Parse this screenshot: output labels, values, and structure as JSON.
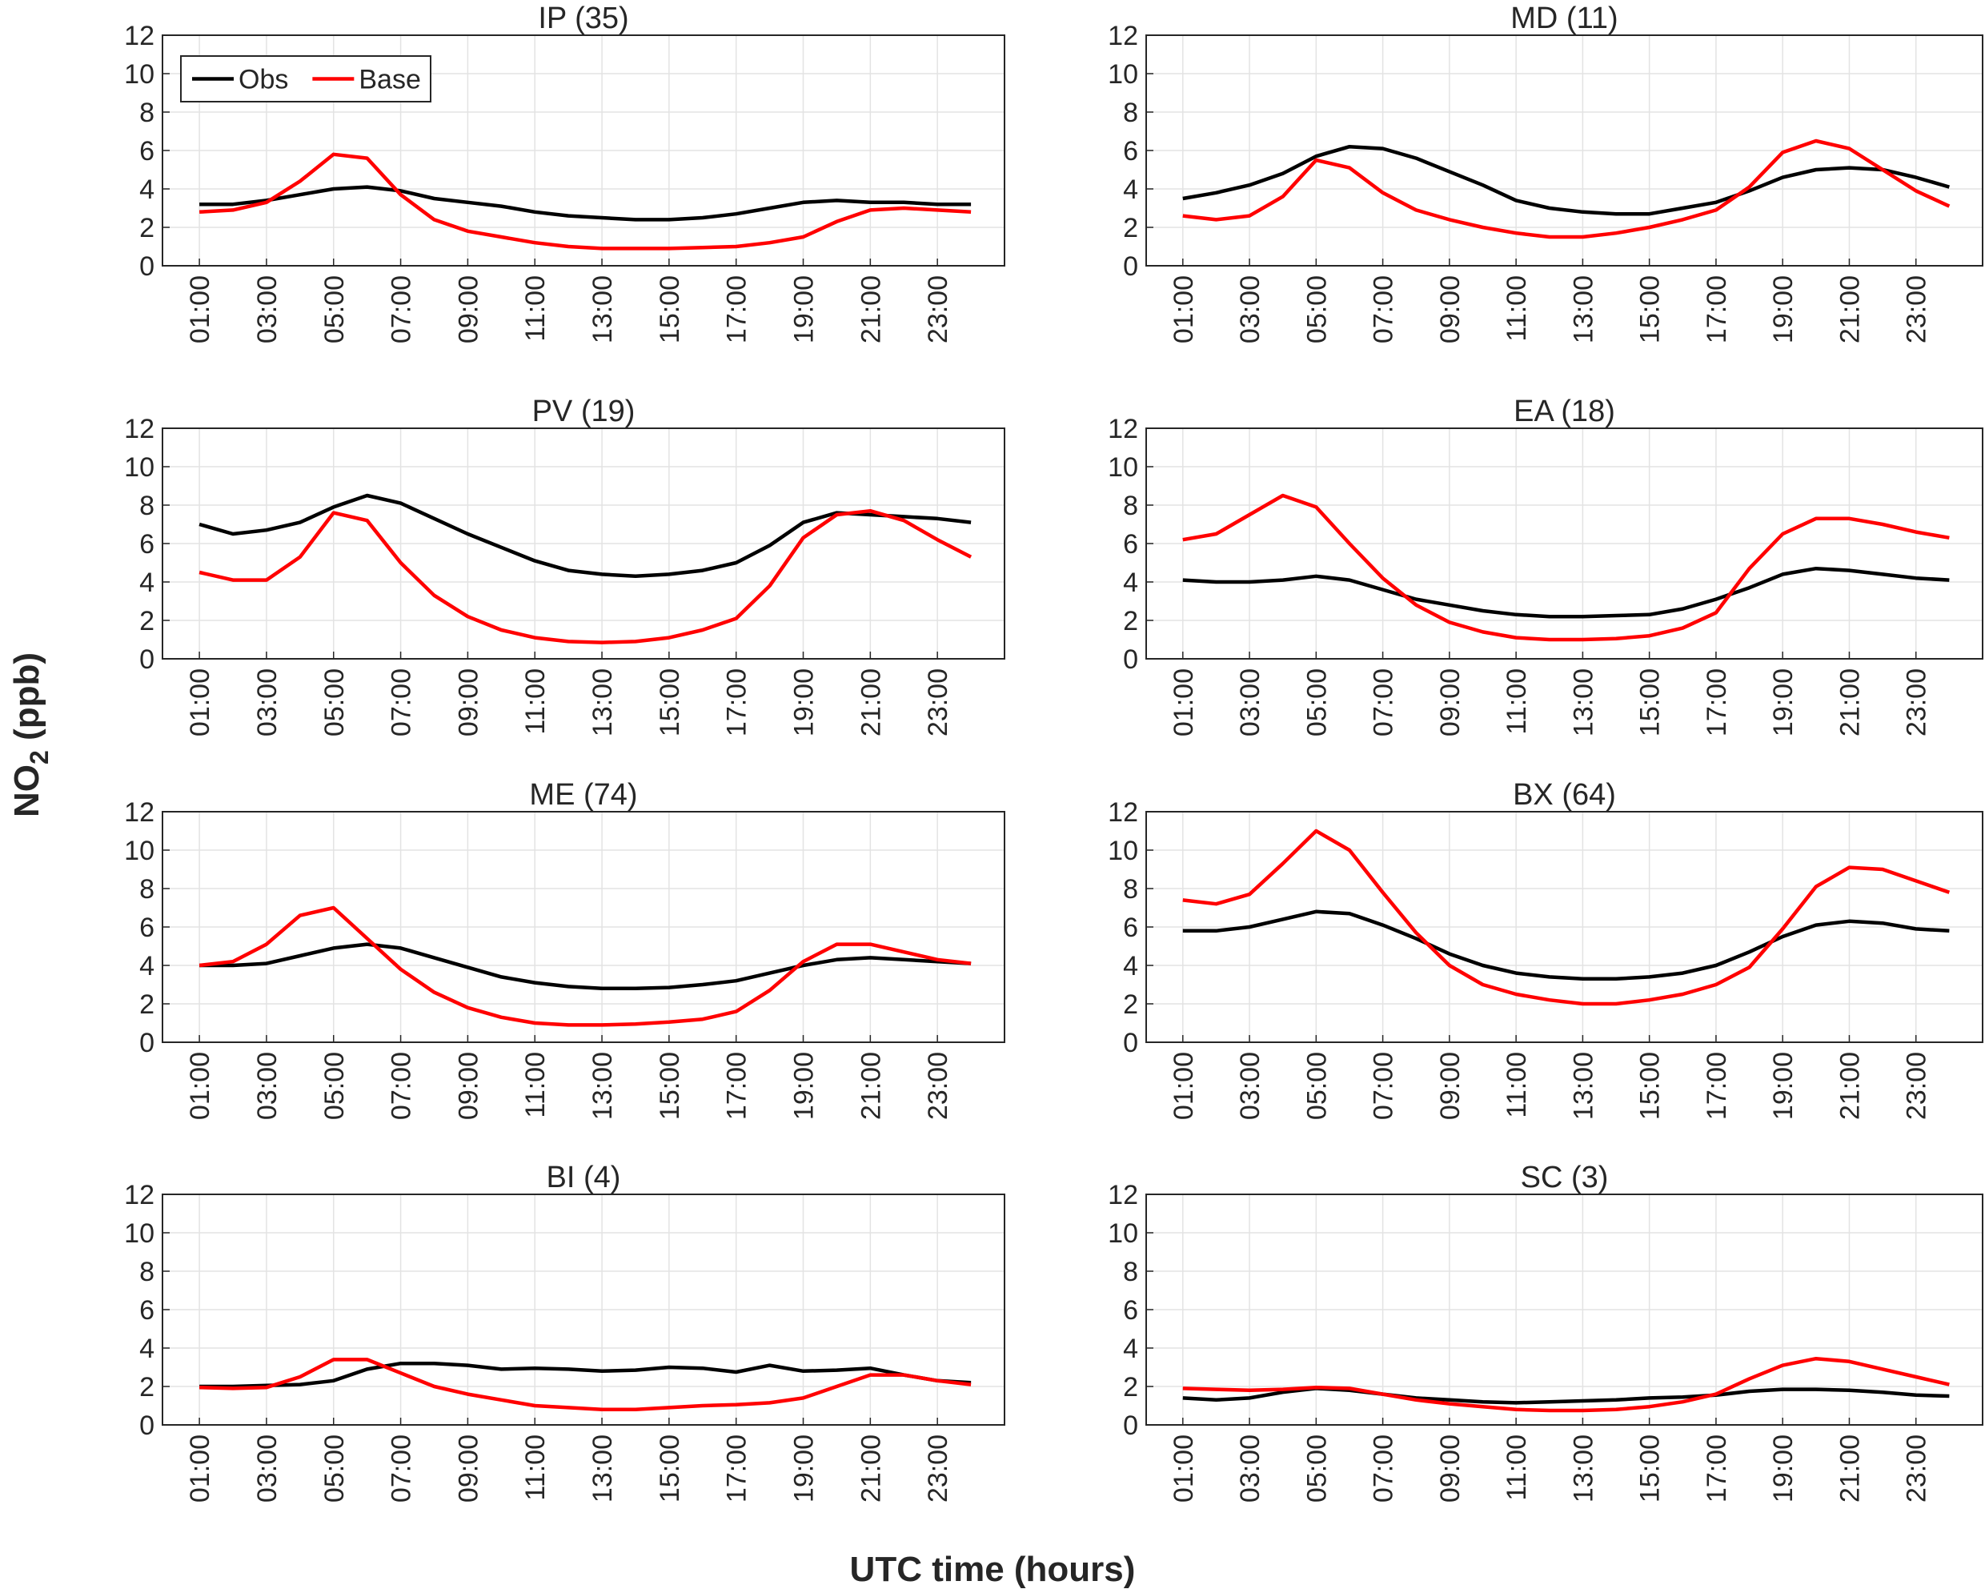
{
  "figure": {
    "ylabel": [
      "NO",
      "2",
      " (ppb)"
    ],
    "xlabel": "UTC time (hours)"
  },
  "chart_data": [
    {
      "type": "line",
      "title": "IP (35)",
      "legend": "upper left",
      "categories": [
        "01:00",
        null,
        "03:00",
        null,
        "05:00",
        null,
        "07:00",
        null,
        "09:00",
        null,
        "11:00",
        null,
        "13:00",
        null,
        "15:00",
        null,
        "17:00",
        null,
        "19:00",
        null,
        "21:00",
        null,
        "23:00",
        null
      ],
      "series": [
        {
          "name": "Obs",
          "color": "#000000",
          "values": [
            3.2,
            3.2,
            3.4,
            3.7,
            4.0,
            4.1,
            3.9,
            3.5,
            3.3,
            3.1,
            2.8,
            2.6,
            2.5,
            2.4,
            2.4,
            2.5,
            2.7,
            3.0,
            3.3,
            3.4,
            3.3,
            3.3,
            3.2,
            3.2
          ]
        },
        {
          "name": "Base",
          "color": "#ff0000",
          "values": [
            2.8,
            2.9,
            3.3,
            4.4,
            5.8,
            5.6,
            3.7,
            2.4,
            1.8,
            1.5,
            1.2,
            1.0,
            0.9,
            0.9,
            0.9,
            0.95,
            1.0,
            1.2,
            1.5,
            2.3,
            2.9,
            3.0,
            2.9,
            2.8
          ]
        }
      ],
      "ylim": [
        0,
        12
      ],
      "yticks": [
        0,
        2,
        4,
        6,
        8,
        10,
        12
      ],
      "grid": true
    },
    {
      "type": "line",
      "title": "MD (11)",
      "categories": [
        "01:00",
        null,
        "03:00",
        null,
        "05:00",
        null,
        "07:00",
        null,
        "09:00",
        null,
        "11:00",
        null,
        "13:00",
        null,
        "15:00",
        null,
        "17:00",
        null,
        "19:00",
        null,
        "21:00",
        null,
        "23:00",
        null
      ],
      "series": [
        {
          "name": "Obs",
          "color": "#000000",
          "values": [
            3.5,
            3.8,
            4.2,
            4.8,
            5.7,
            6.2,
            6.1,
            5.6,
            4.9,
            4.2,
            3.4,
            3.0,
            2.8,
            2.7,
            2.7,
            3.0,
            3.3,
            3.9,
            4.6,
            5.0,
            5.1,
            5.0,
            4.6,
            4.1
          ]
        },
        {
          "name": "Base",
          "color": "#ff0000",
          "values": [
            2.6,
            2.4,
            2.6,
            3.6,
            5.5,
            5.1,
            3.8,
            2.9,
            2.4,
            2.0,
            1.7,
            1.5,
            1.5,
            1.7,
            2.0,
            2.4,
            2.9,
            4.1,
            5.9,
            6.5,
            6.1,
            5.0,
            3.9,
            3.1
          ]
        }
      ],
      "ylim": [
        0,
        12
      ],
      "yticks": [
        0,
        2,
        4,
        6,
        8,
        10,
        12
      ],
      "grid": true
    },
    {
      "type": "line",
      "title": "PV (19)",
      "categories": [
        "01:00",
        null,
        "03:00",
        null,
        "05:00",
        null,
        "07:00",
        null,
        "09:00",
        null,
        "11:00",
        null,
        "13:00",
        null,
        "15:00",
        null,
        "17:00",
        null,
        "19:00",
        null,
        "21:00",
        null,
        "23:00",
        null
      ],
      "series": [
        {
          "name": "Obs",
          "color": "#000000",
          "values": [
            7.0,
            6.5,
            6.7,
            7.1,
            7.9,
            8.5,
            8.1,
            7.3,
            6.5,
            5.8,
            5.1,
            4.6,
            4.4,
            4.3,
            4.4,
            4.6,
            5.0,
            5.9,
            7.1,
            7.6,
            7.5,
            7.4,
            7.3,
            7.1
          ]
        },
        {
          "name": "Base",
          "color": "#ff0000",
          "values": [
            4.5,
            4.1,
            4.1,
            5.3,
            7.6,
            7.2,
            5.0,
            3.3,
            2.2,
            1.5,
            1.1,
            0.9,
            0.85,
            0.9,
            1.1,
            1.5,
            2.1,
            3.8,
            6.3,
            7.5,
            7.7,
            7.2,
            6.2,
            5.3
          ]
        }
      ],
      "ylim": [
        0,
        12
      ],
      "yticks": [
        0,
        2,
        4,
        6,
        8,
        10,
        12
      ],
      "grid": true
    },
    {
      "type": "line",
      "title": "EA (18)",
      "categories": [
        "01:00",
        null,
        "03:00",
        null,
        "05:00",
        null,
        "07:00",
        null,
        "09:00",
        null,
        "11:00",
        null,
        "13:00",
        null,
        "15:00",
        null,
        "17:00",
        null,
        "19:00",
        null,
        "21:00",
        null,
        "23:00",
        null
      ],
      "series": [
        {
          "name": "Obs",
          "color": "#000000",
          "values": [
            4.1,
            4.0,
            4.0,
            4.1,
            4.3,
            4.1,
            3.6,
            3.1,
            2.8,
            2.5,
            2.3,
            2.2,
            2.2,
            2.25,
            2.3,
            2.6,
            3.1,
            3.7,
            4.4,
            4.7,
            4.6,
            4.4,
            4.2,
            4.1
          ]
        },
        {
          "name": "Base",
          "color": "#ff0000",
          "values": [
            6.2,
            6.5,
            7.5,
            8.5,
            7.9,
            6.0,
            4.2,
            2.8,
            1.9,
            1.4,
            1.1,
            1.0,
            1.0,
            1.05,
            1.2,
            1.6,
            2.4,
            4.7,
            6.5,
            7.3,
            7.3,
            7.0,
            6.6,
            6.3
          ]
        }
      ],
      "ylim": [
        0,
        12
      ],
      "yticks": [
        0,
        2,
        4,
        6,
        8,
        10,
        12
      ],
      "grid": true
    },
    {
      "type": "line",
      "title": "ME (74)",
      "categories": [
        "01:00",
        null,
        "03:00",
        null,
        "05:00",
        null,
        "07:00",
        null,
        "09:00",
        null,
        "11:00",
        null,
        "13:00",
        null,
        "15:00",
        null,
        "17:00",
        null,
        "19:00",
        null,
        "21:00",
        null,
        "23:00",
        null
      ],
      "series": [
        {
          "name": "Obs",
          "color": "#000000",
          "values": [
            4.0,
            4.0,
            4.1,
            4.5,
            4.9,
            5.1,
            4.9,
            4.4,
            3.9,
            3.4,
            3.1,
            2.9,
            2.8,
            2.8,
            2.85,
            3.0,
            3.2,
            3.6,
            4.0,
            4.3,
            4.4,
            4.3,
            4.2,
            4.1
          ]
        },
        {
          "name": "Base",
          "color": "#ff0000",
          "values": [
            4.0,
            4.2,
            5.1,
            6.6,
            7.0,
            5.4,
            3.8,
            2.6,
            1.8,
            1.3,
            1.0,
            0.9,
            0.9,
            0.95,
            1.05,
            1.2,
            1.6,
            2.7,
            4.2,
            5.1,
            5.1,
            4.7,
            4.3,
            4.1
          ]
        }
      ],
      "ylim": [
        0,
        12
      ],
      "yticks": [
        0,
        2,
        4,
        6,
        8,
        10,
        12
      ],
      "grid": true
    },
    {
      "type": "line",
      "title": "BX (64)",
      "categories": [
        "01:00",
        null,
        "03:00",
        null,
        "05:00",
        null,
        "07:00",
        null,
        "09:00",
        null,
        "11:00",
        null,
        "13:00",
        null,
        "15:00",
        null,
        "17:00",
        null,
        "19:00",
        null,
        "21:00",
        null,
        "23:00",
        null
      ],
      "series": [
        {
          "name": "Obs",
          "color": "#000000",
          "values": [
            5.8,
            5.8,
            6.0,
            6.4,
            6.8,
            6.7,
            6.1,
            5.4,
            4.6,
            4.0,
            3.6,
            3.4,
            3.3,
            3.3,
            3.4,
            3.6,
            4.0,
            4.7,
            5.5,
            6.1,
            6.3,
            6.2,
            5.9,
            5.8
          ]
        },
        {
          "name": "Base",
          "color": "#ff0000",
          "values": [
            7.4,
            7.2,
            7.7,
            9.3,
            11.0,
            10.0,
            7.8,
            5.7,
            4.0,
            3.0,
            2.5,
            2.2,
            2.0,
            2.0,
            2.2,
            2.5,
            3.0,
            3.9,
            5.9,
            8.1,
            9.1,
            9.0,
            8.4,
            7.8
          ]
        }
      ],
      "ylim": [
        0,
        12
      ],
      "yticks": [
        0,
        2,
        4,
        6,
        8,
        10,
        12
      ],
      "grid": true
    },
    {
      "type": "line",
      "title": "BI (4)",
      "categories": [
        "01:00",
        null,
        "03:00",
        null,
        "05:00",
        null,
        "07:00",
        null,
        "09:00",
        null,
        "11:00",
        null,
        "13:00",
        null,
        "15:00",
        null,
        "17:00",
        null,
        "19:00",
        null,
        "21:00",
        null,
        "23:00",
        null
      ],
      "series": [
        {
          "name": "Obs",
          "color": "#000000",
          "values": [
            2.0,
            2.0,
            2.05,
            2.1,
            2.3,
            2.9,
            3.2,
            3.2,
            3.1,
            2.9,
            2.95,
            2.9,
            2.8,
            2.85,
            3.0,
            2.95,
            2.75,
            3.1,
            2.8,
            2.85,
            2.95,
            2.6,
            2.3,
            2.2
          ]
        },
        {
          "name": "Base",
          "color": "#ff0000",
          "values": [
            1.95,
            1.9,
            1.95,
            2.5,
            3.4,
            3.4,
            2.7,
            2.0,
            1.6,
            1.3,
            1.0,
            0.9,
            0.8,
            0.8,
            0.9,
            1.0,
            1.05,
            1.15,
            1.4,
            2.0,
            2.6,
            2.6,
            2.3,
            2.1
          ]
        }
      ],
      "ylim": [
        0,
        12
      ],
      "yticks": [
        0,
        2,
        4,
        6,
        8,
        10,
        12
      ],
      "grid": true
    },
    {
      "type": "line",
      "title": "SC (3)",
      "categories": [
        "01:00",
        null,
        "03:00",
        null,
        "05:00",
        null,
        "07:00",
        null,
        "09:00",
        null,
        "11:00",
        null,
        "13:00",
        null,
        "15:00",
        null,
        "17:00",
        null,
        "19:00",
        null,
        "21:00",
        null,
        "23:00",
        null
      ],
      "series": [
        {
          "name": "Obs",
          "color": "#000000",
          "values": [
            1.4,
            1.3,
            1.4,
            1.7,
            1.9,
            1.8,
            1.6,
            1.4,
            1.3,
            1.2,
            1.15,
            1.2,
            1.25,
            1.3,
            1.4,
            1.45,
            1.55,
            1.75,
            1.85,
            1.85,
            1.8,
            1.7,
            1.55,
            1.5
          ]
        },
        {
          "name": "Base",
          "color": "#ff0000",
          "values": [
            1.9,
            1.85,
            1.8,
            1.85,
            1.95,
            1.9,
            1.6,
            1.3,
            1.1,
            0.95,
            0.8,
            0.75,
            0.75,
            0.8,
            0.95,
            1.2,
            1.6,
            2.4,
            3.1,
            3.45,
            3.3,
            2.9,
            2.5,
            2.1
          ]
        }
      ],
      "ylim": [
        0,
        12
      ],
      "yticks": [
        0,
        2,
        4,
        6,
        8,
        10,
        12
      ],
      "grid": true
    }
  ]
}
